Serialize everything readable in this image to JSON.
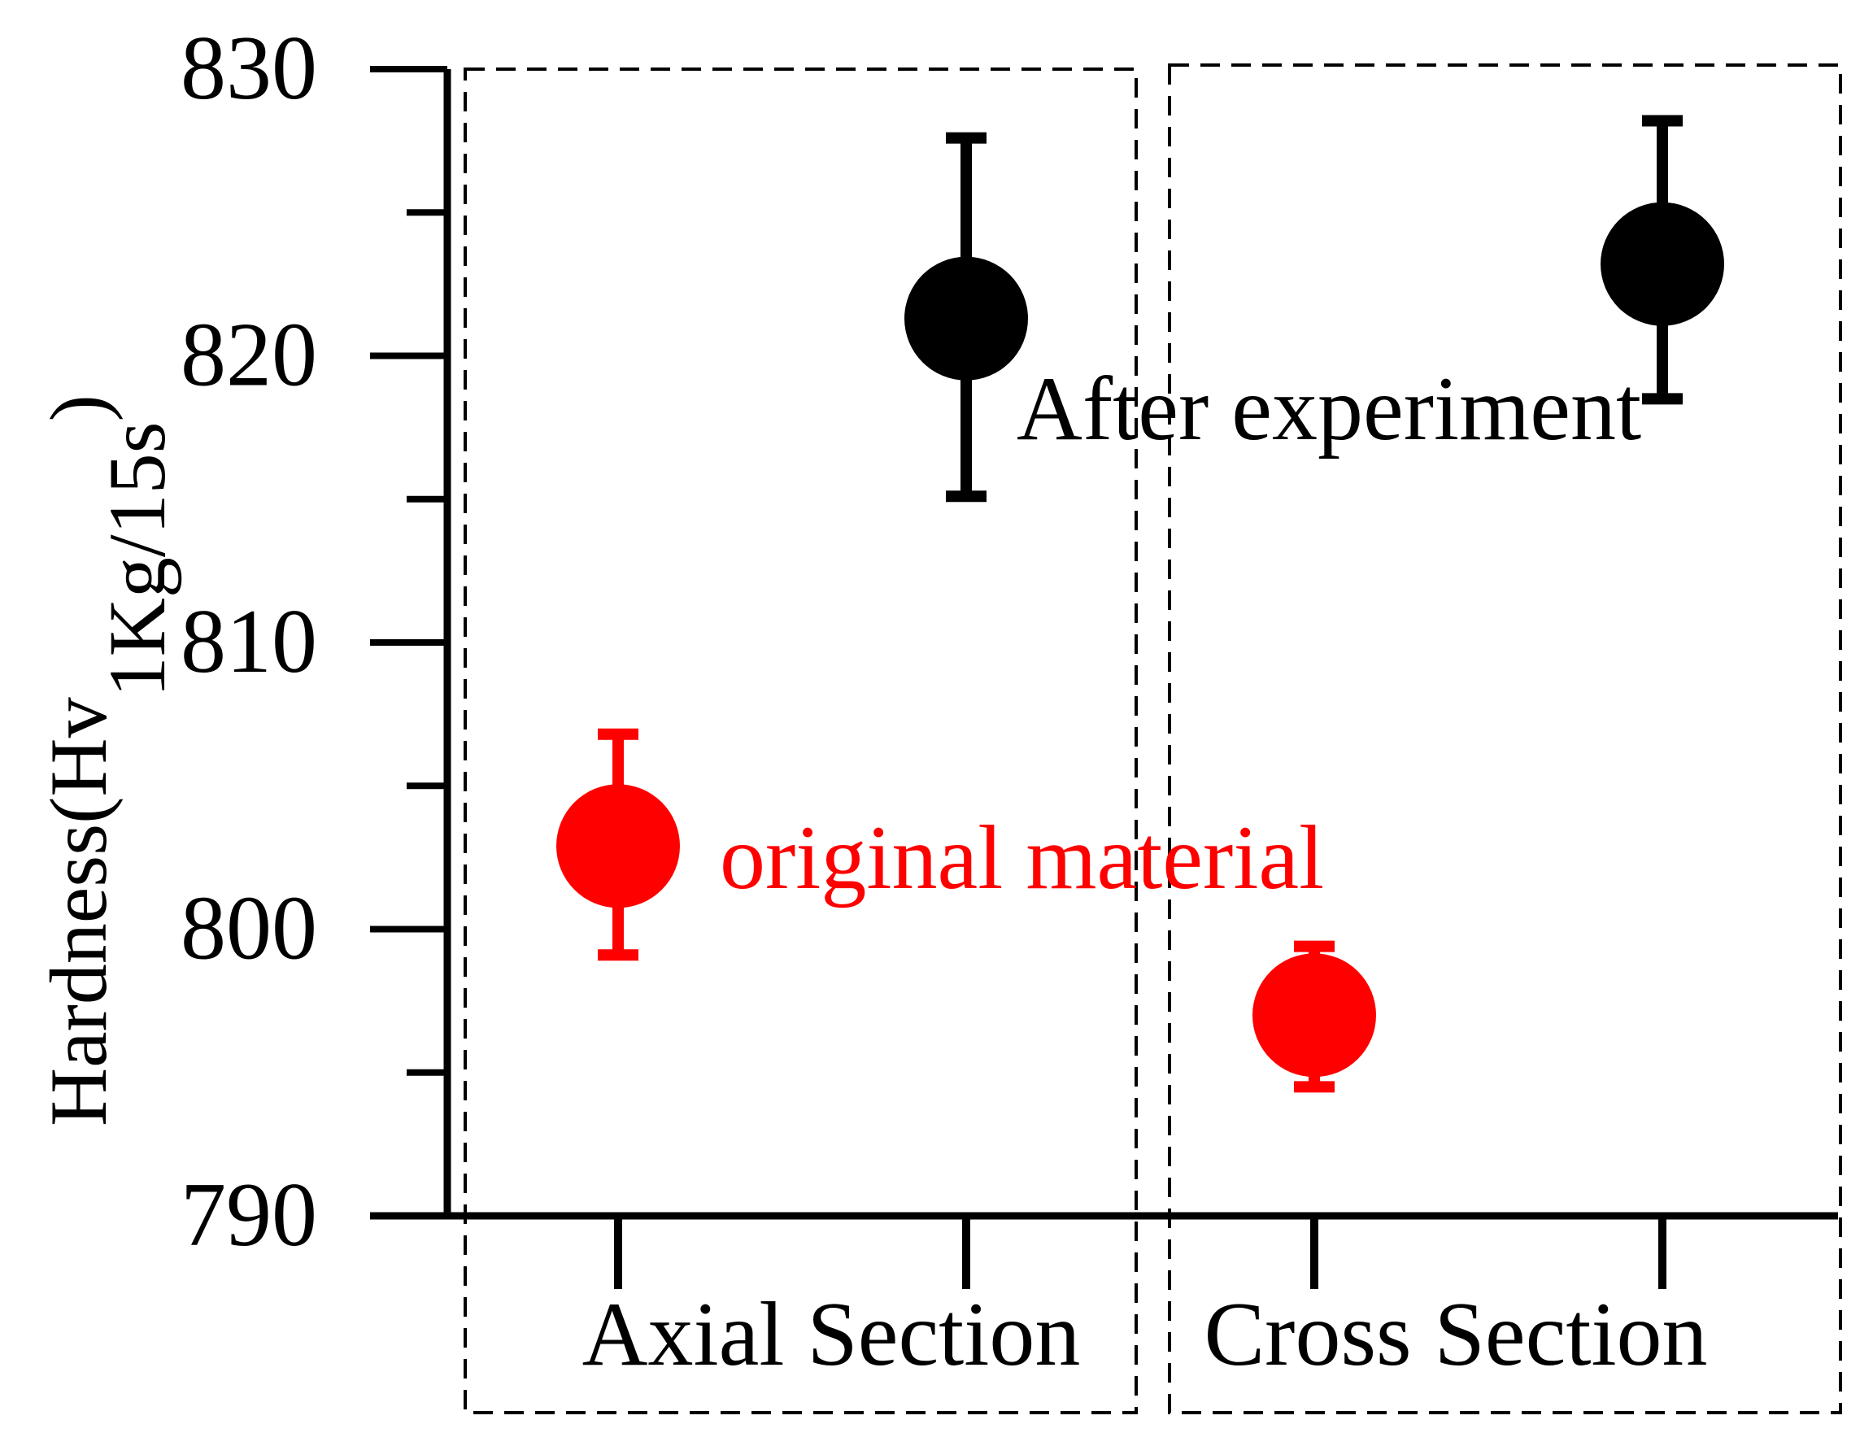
{
  "chart_data": {
    "type": "scatter",
    "title": "",
    "ylabel": {
      "main": "Hardness(Hv",
      "subscript": "1Kg/15s",
      "close": ")"
    },
    "xlabel": "",
    "ylim": [
      790,
      830
    ],
    "yticks": [
      790,
      800,
      810,
      820,
      830
    ],
    "y_minor_ticks": [
      795,
      805,
      815,
      825
    ],
    "x_positions": [
      1,
      2,
      3,
      4
    ],
    "xlim": [
      0.2,
      4.5
    ],
    "grid": false,
    "groups": [
      {
        "label": "Axial Section",
        "x_range": [
          1,
          2
        ]
      },
      {
        "label": "Cross Section",
        "x_range": [
          3,
          4
        ]
      }
    ],
    "series": [
      {
        "name": "original material",
        "color": "#ff0000",
        "points": [
          {
            "x": 1,
            "y": 802.9,
            "err_low": 799.1,
            "err_high": 806.8
          },
          {
            "x": 3,
            "y": 797.0,
            "err_low": 794.5,
            "err_high": 799.4
          }
        ]
      },
      {
        "name": "After experiment",
        "color": "#000000",
        "points": [
          {
            "x": 2,
            "y": 821.3,
            "err_low": 815.1,
            "err_high": 827.6
          },
          {
            "x": 4,
            "y": 823.2,
            "err_low": 818.5,
            "err_high": 828.2
          }
        ]
      }
    ]
  }
}
